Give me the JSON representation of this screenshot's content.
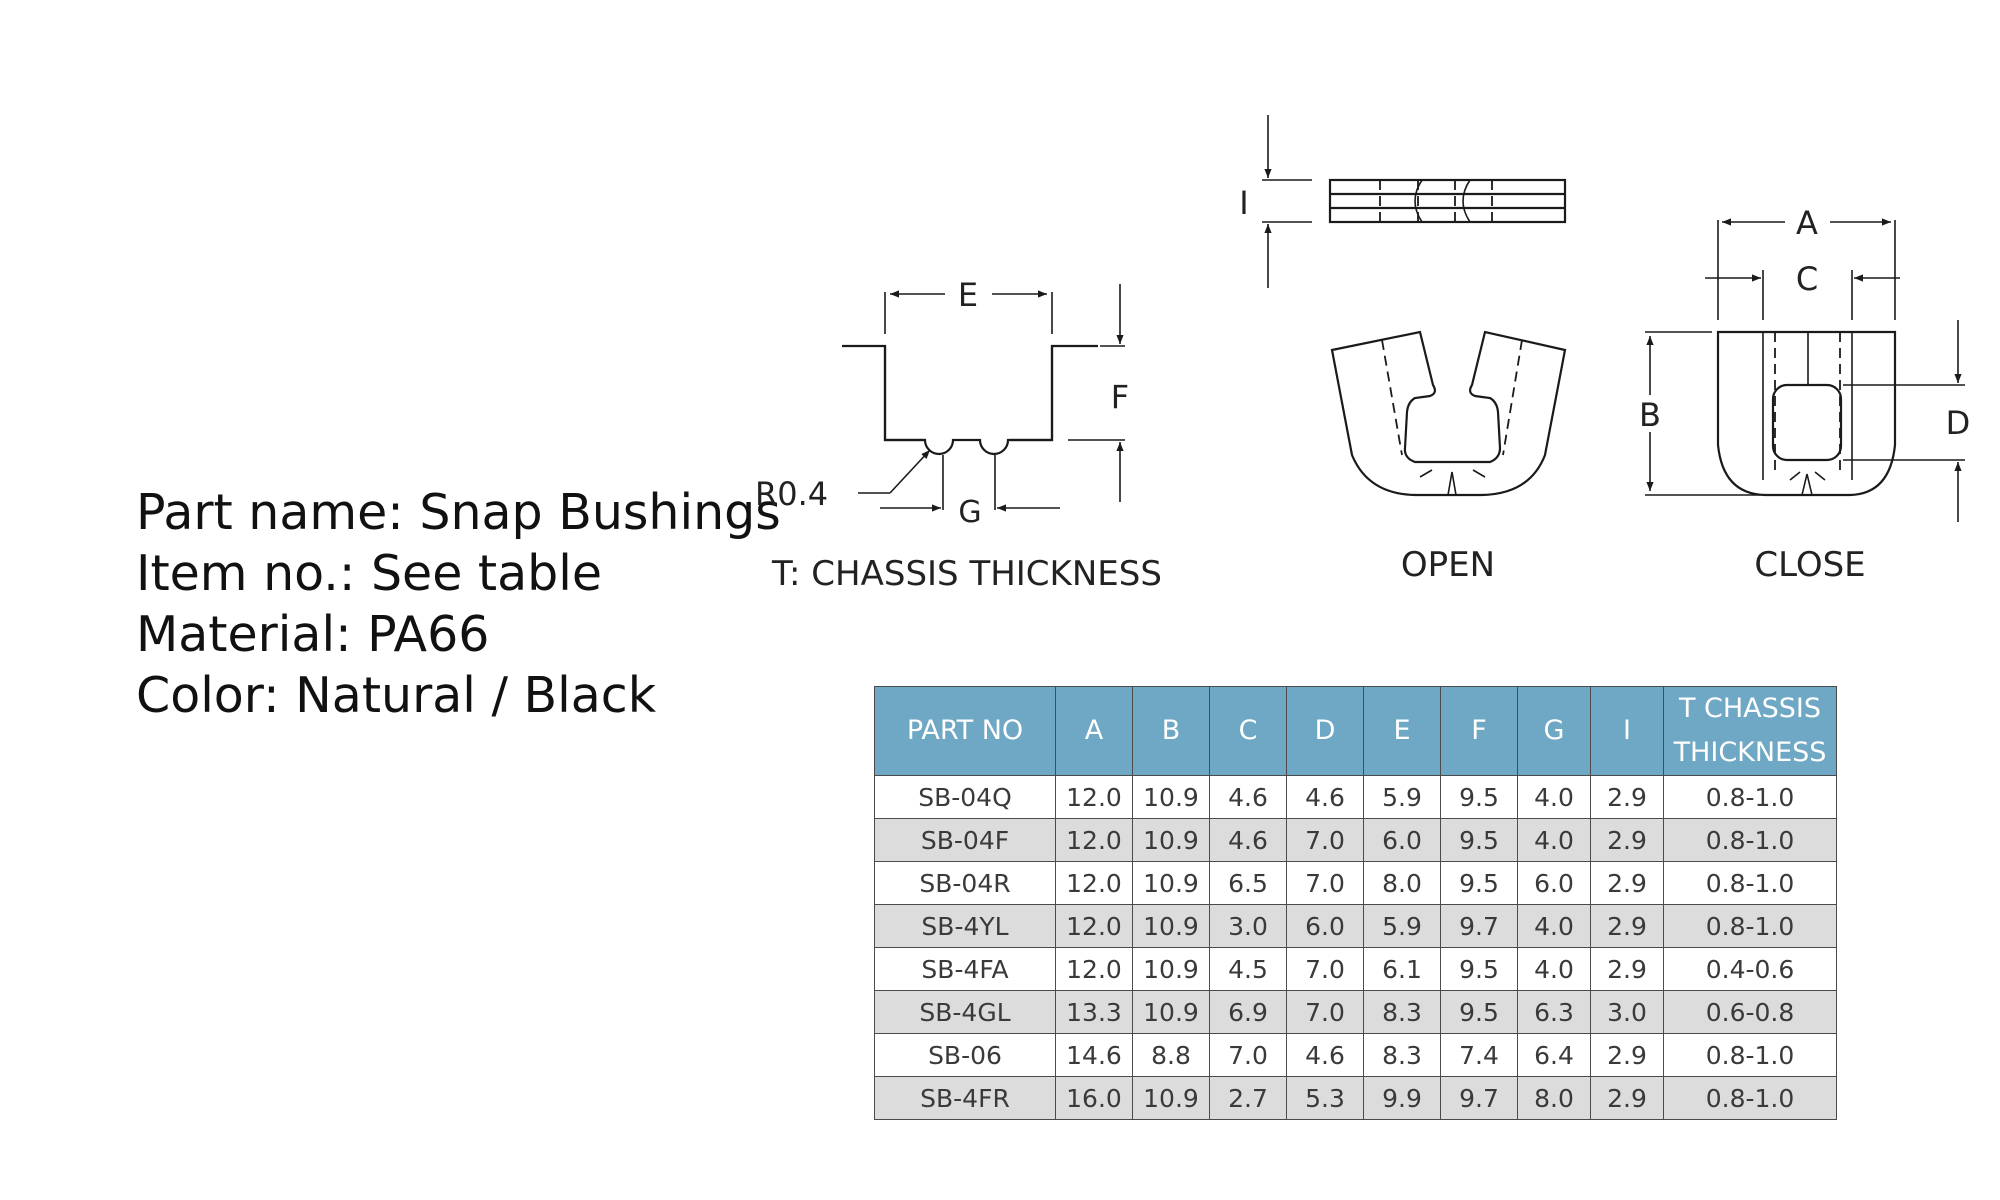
{
  "info": {
    "part_name": "Part name: Snap Bushings",
    "item_no": "Item no.: See table",
    "material": "Material: PA66",
    "color": "Color: Natural / Black"
  },
  "drawing": {
    "dim_e": "E",
    "dim_f": "F",
    "dim_g": "G",
    "radius": "R0.4",
    "dim_i": "I",
    "dim_a": "A",
    "dim_b": "B",
    "dim_c": "C",
    "dim_d": "D",
    "note_chassis": "T:  CHASSIS  THICKNESS",
    "label_open": "OPEN",
    "label_close": "CLOSE"
  },
  "table": {
    "headers": [
      "PART NO",
      "A",
      "B",
      "C",
      "D",
      "E",
      "F",
      "G",
      "I",
      "T CHASSIS",
      "THICKNESS"
    ],
    "rows": [
      [
        "SB-04Q",
        "12.0",
        "10.9",
        "4.6",
        "4.6",
        "5.9",
        "9.5",
        "4.0",
        "2.9",
        "0.8-1.0"
      ],
      [
        "SB-04F",
        "12.0",
        "10.9",
        "4.6",
        "7.0",
        "6.0",
        "9.5",
        "4.0",
        "2.9",
        "0.8-1.0"
      ],
      [
        "SB-04R",
        "12.0",
        "10.9",
        "6.5",
        "7.0",
        "8.0",
        "9.5",
        "6.0",
        "2.9",
        "0.8-1.0"
      ],
      [
        "SB-4YL",
        "12.0",
        "10.9",
        "3.0",
        "6.0",
        "5.9",
        "9.7",
        "4.0",
        "2.9",
        "0.8-1.0"
      ],
      [
        "SB-4FA",
        "12.0",
        "10.9",
        "4.5",
        "7.0",
        "6.1",
        "9.5",
        "4.0",
        "2.9",
        "0.4-0.6"
      ],
      [
        "SB-4GL",
        "13.3",
        "10.9",
        "6.9",
        "7.0",
        "8.3",
        "9.5",
        "6.3",
        "3.0",
        "0.6-0.8"
      ],
      [
        "SB-06",
        "14.6",
        "8.8",
        "7.0",
        "4.6",
        "8.3",
        "7.4",
        "6.4",
        "2.9",
        "0.8-1.0"
      ],
      [
        "SB-4FR",
        "16.0",
        "10.9",
        "2.7",
        "5.3",
        "9.9",
        "9.7",
        "8.0",
        "2.9",
        "0.8-1.0"
      ]
    ]
  }
}
